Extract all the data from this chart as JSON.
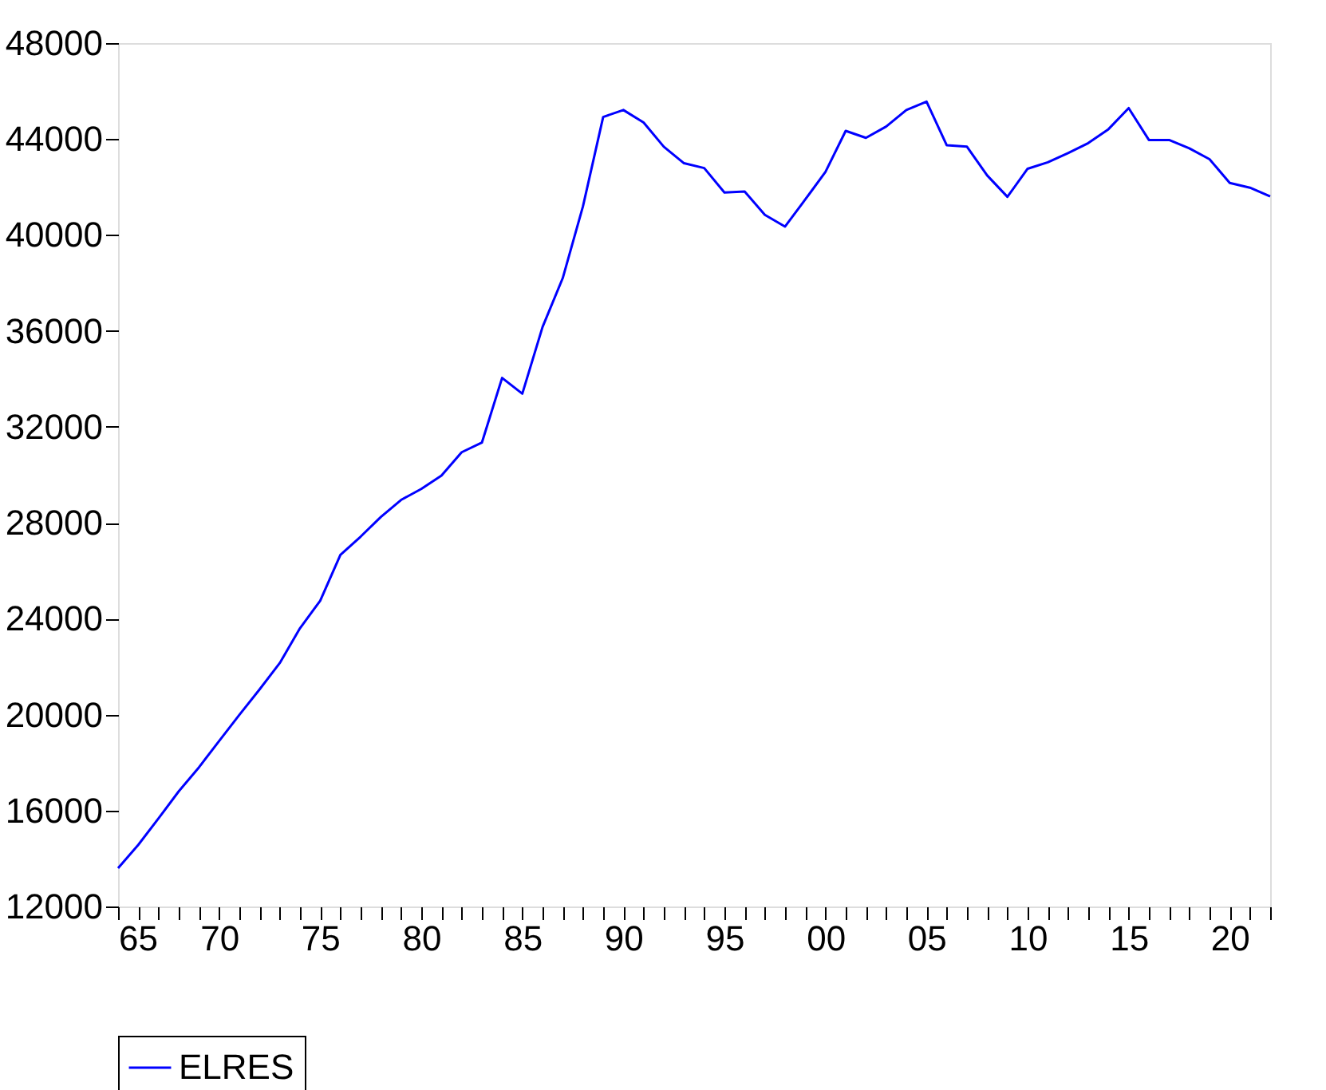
{
  "chart_data": {
    "type": "line",
    "x": [
      1965,
      1966,
      1967,
      1968,
      1969,
      1970,
      1971,
      1972,
      1973,
      1974,
      1975,
      1976,
      1977,
      1978,
      1979,
      1980,
      1981,
      1982,
      1983,
      1984,
      1985,
      1986,
      1987,
      1988,
      1989,
      1990,
      1991,
      1992,
      1993,
      1994,
      1995,
      1996,
      1997,
      1998,
      1999,
      2000,
      2001,
      2002,
      2003,
      2004,
      2005,
      2006,
      2007,
      2008,
      2009,
      2010,
      2011,
      2012,
      2013,
      2014,
      2015,
      2016,
      2017,
      2018,
      2019,
      2020,
      2021,
      2022
    ],
    "series": [
      {
        "name": "ELRES",
        "color": "#0000ff",
        "values": [
          13600,
          14570,
          15670,
          16800,
          17800,
          18900,
          19990,
          21050,
          22150,
          23600,
          24750,
          26660,
          27420,
          28240,
          28950,
          29410,
          29970,
          30940,
          31340,
          34040,
          33380,
          36160,
          38200,
          41190,
          44920,
          45210,
          44690,
          43680,
          42990,
          42790,
          41770,
          41810,
          40840,
          40350,
          41480,
          42630,
          44340,
          44050,
          44520,
          45210,
          45560,
          43740,
          43680,
          42480,
          41590,
          42760,
          43030,
          43410,
          43830,
          44410,
          45290,
          43960,
          43960,
          43610,
          43160,
          42170,
          41970,
          41610
        ]
      }
    ],
    "xlim": [
      1965,
      2022
    ],
    "xticks": [
      {
        "value": 1965,
        "label": "65"
      },
      {
        "value": 1966,
        "label": null
      },
      {
        "value": 1967,
        "label": null
      },
      {
        "value": 1968,
        "label": null
      },
      {
        "value": 1969,
        "label": null
      },
      {
        "value": 1970,
        "label": "70"
      },
      {
        "value": 1971,
        "label": null
      },
      {
        "value": 1972,
        "label": null
      },
      {
        "value": 1973,
        "label": null
      },
      {
        "value": 1974,
        "label": null
      },
      {
        "value": 1975,
        "label": "75"
      },
      {
        "value": 1976,
        "label": null
      },
      {
        "value": 1977,
        "label": null
      },
      {
        "value": 1978,
        "label": null
      },
      {
        "value": 1979,
        "label": null
      },
      {
        "value": 1980,
        "label": "80"
      },
      {
        "value": 1981,
        "label": null
      },
      {
        "value": 1982,
        "label": null
      },
      {
        "value": 1983,
        "label": null
      },
      {
        "value": 1984,
        "label": null
      },
      {
        "value": 1985,
        "label": "85"
      },
      {
        "value": 1986,
        "label": null
      },
      {
        "value": 1987,
        "label": null
      },
      {
        "value": 1988,
        "label": null
      },
      {
        "value": 1989,
        "label": null
      },
      {
        "value": 1990,
        "label": "90"
      },
      {
        "value": 1991,
        "label": null
      },
      {
        "value": 1992,
        "label": null
      },
      {
        "value": 1993,
        "label": null
      },
      {
        "value": 1994,
        "label": null
      },
      {
        "value": 1995,
        "label": "95"
      },
      {
        "value": 1996,
        "label": null
      },
      {
        "value": 1997,
        "label": null
      },
      {
        "value": 1998,
        "label": null
      },
      {
        "value": 1999,
        "label": null
      },
      {
        "value": 2000,
        "label": "00"
      },
      {
        "value": 2001,
        "label": null
      },
      {
        "value": 2002,
        "label": null
      },
      {
        "value": 2003,
        "label": null
      },
      {
        "value": 2004,
        "label": null
      },
      {
        "value": 2005,
        "label": "05"
      },
      {
        "value": 2006,
        "label": null
      },
      {
        "value": 2007,
        "label": null
      },
      {
        "value": 2008,
        "label": null
      },
      {
        "value": 2009,
        "label": null
      },
      {
        "value": 2010,
        "label": "10"
      },
      {
        "value": 2011,
        "label": null
      },
      {
        "value": 2012,
        "label": null
      },
      {
        "value": 2013,
        "label": null
      },
      {
        "value": 2014,
        "label": null
      },
      {
        "value": 2015,
        "label": "15"
      },
      {
        "value": 2016,
        "label": null
      },
      {
        "value": 2017,
        "label": null
      },
      {
        "value": 2018,
        "label": null
      },
      {
        "value": 2019,
        "label": null
      },
      {
        "value": 2020,
        "label": "20"
      },
      {
        "value": 2021,
        "label": null
      },
      {
        "value": 2022,
        "label": null
      }
    ],
    "ylim": [
      12000,
      48000
    ],
    "yticks": [
      12000,
      16000,
      20000,
      24000,
      28000,
      32000,
      36000,
      40000,
      44000,
      48000
    ],
    "grid": false,
    "legend": "bottom"
  }
}
